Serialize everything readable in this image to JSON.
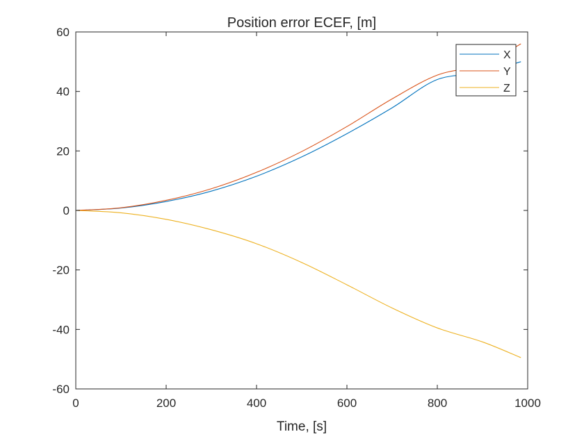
{
  "chart_data": {
    "type": "line",
    "title": "Position error ECEF, [m]",
    "xlabel": "Time, [s]",
    "ylabel": "",
    "xlim": [
      0,
      1000
    ],
    "ylim": [
      -60,
      60
    ],
    "xticks": [
      0,
      200,
      400,
      600,
      800,
      1000
    ],
    "yticks": [
      -60,
      -40,
      -20,
      0,
      20,
      40,
      60
    ],
    "xtick_labels": [
      "0",
      "200",
      "400",
      "600",
      "800",
      "1000"
    ],
    "ytick_labels": [
      "-60",
      "-40",
      "-20",
      "0",
      "20",
      "40",
      "60"
    ],
    "grid": false,
    "legend_position": "top-right",
    "x": [
      0,
      100,
      200,
      300,
      400,
      500,
      600,
      700,
      800,
      900,
      985
    ],
    "series": [
      {
        "name": "X",
        "color": "#0072BD",
        "values": [
          0,
          0.8,
          3.0,
          6.5,
          11.5,
          18.0,
          25.8,
          34.5,
          44.0,
          46.2,
          50.0
        ]
      },
      {
        "name": "Y",
        "color": "#D95319",
        "values": [
          0,
          0.9,
          3.4,
          7.3,
          12.8,
          19.8,
          28.2,
          37.5,
          45.5,
          49.0,
          56.0
        ]
      },
      {
        "name": "Z",
        "color": "#EDB120",
        "values": [
          0,
          -0.8,
          -3.0,
          -6.5,
          -11.2,
          -17.5,
          -25.0,
          -32.8,
          -39.5,
          -44.2,
          -49.5
        ]
      }
    ]
  }
}
